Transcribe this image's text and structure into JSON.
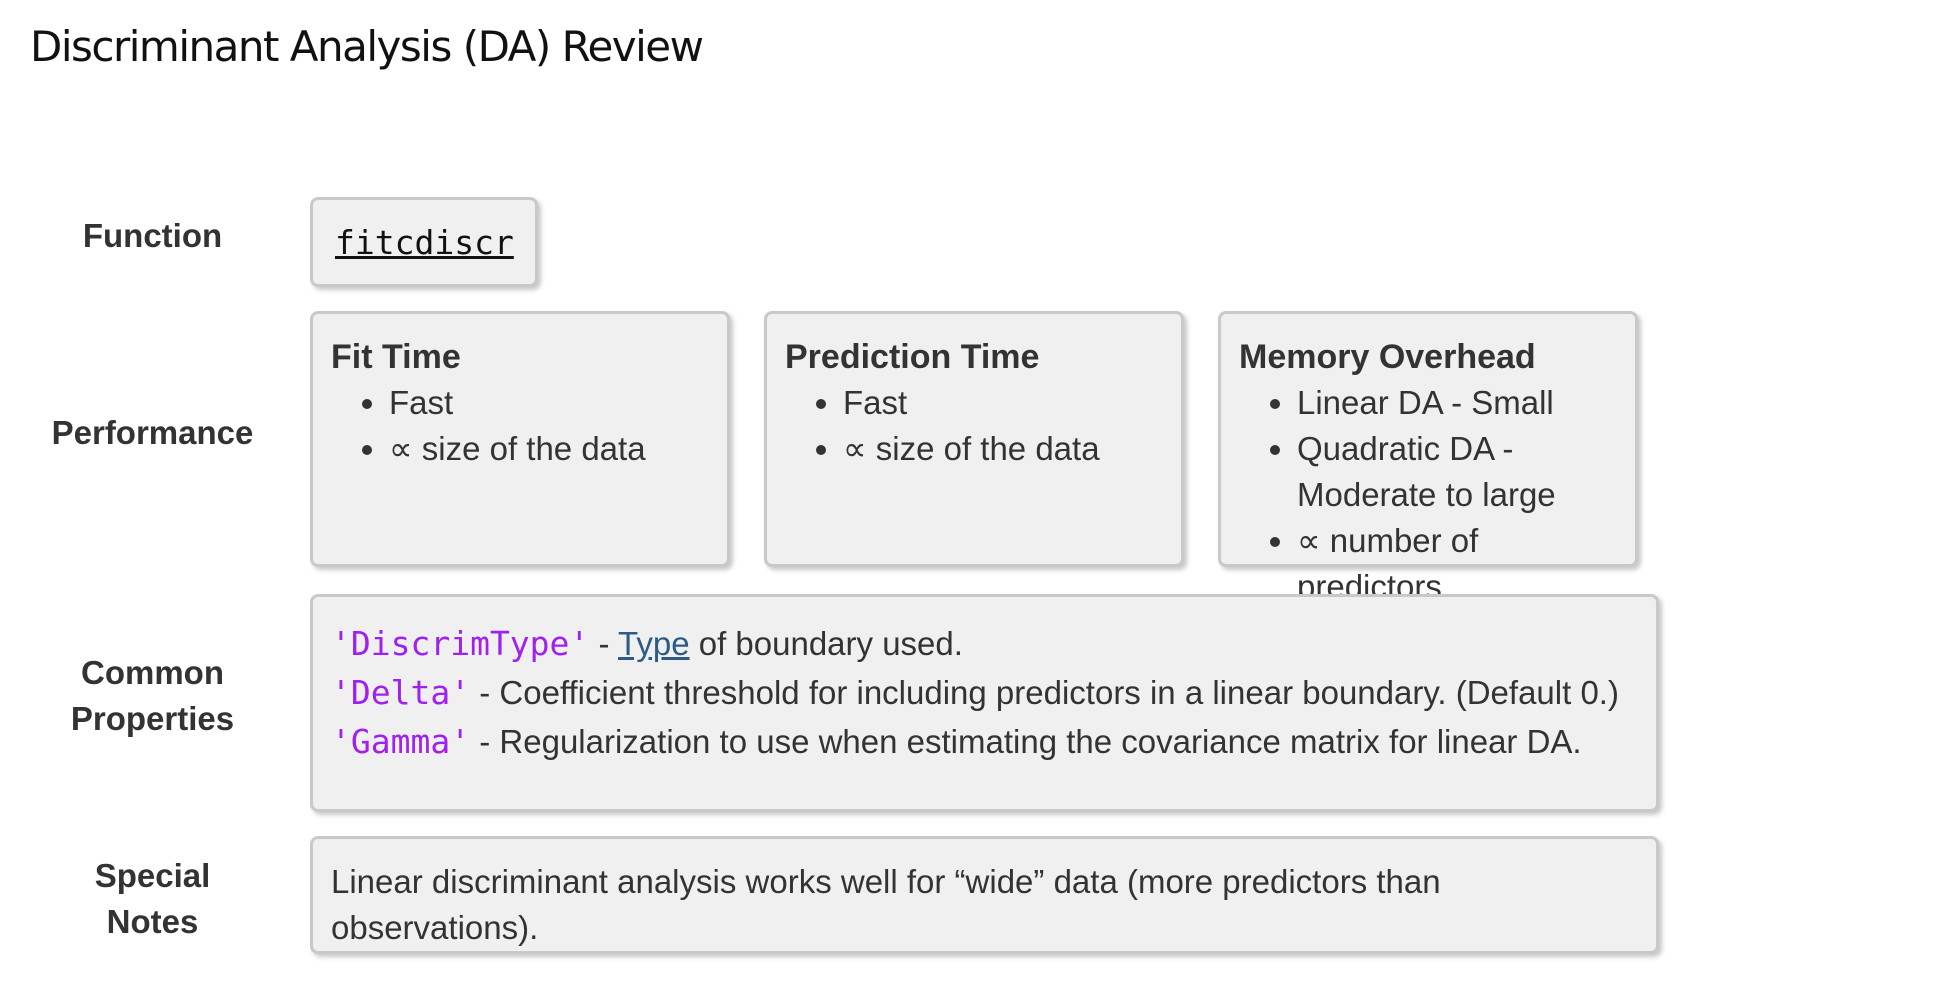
{
  "title": "Discriminant Analysis (DA) Review",
  "labels": {
    "function": "Function",
    "performance": "Performance",
    "properties_1": "Common",
    "properties_2": "Properties",
    "notes_1": "Special",
    "notes_2": "Notes"
  },
  "function_name": "fitcdiscr",
  "performance": [
    {
      "title": "Fit Time",
      "items": [
        "Fast",
        "∝ size of the data"
      ]
    },
    {
      "title": "Prediction Time",
      "items": [
        "Fast",
        "∝ size of the data"
      ]
    },
    {
      "title": "Memory Overhead",
      "items": [
        "Linear DA - Small",
        "Quadratic DA - Moderate to large",
        "∝ number of predictors"
      ]
    }
  ],
  "properties": [
    {
      "name": "'DiscrimType'",
      "sep": " - ",
      "link": "Type",
      "desc": " of boundary used."
    },
    {
      "name": "'Delta'",
      "sep": " - ",
      "desc": "Coefficient threshold for including predictors in a linear boundary. (Default 0.)"
    },
    {
      "name": "'Gamma'",
      "sep": " - ",
      "desc": "Regularization to use when estimating the covariance matrix for linear DA."
    }
  ],
  "notes": "Linear discriminant analysis works well for “wide” data (more predictors than observations).",
  "colors": {
    "code": "#a020f0",
    "link": "#2b5b86",
    "card_bg": "#f0f0f0",
    "card_border": "#c9c9c9"
  }
}
